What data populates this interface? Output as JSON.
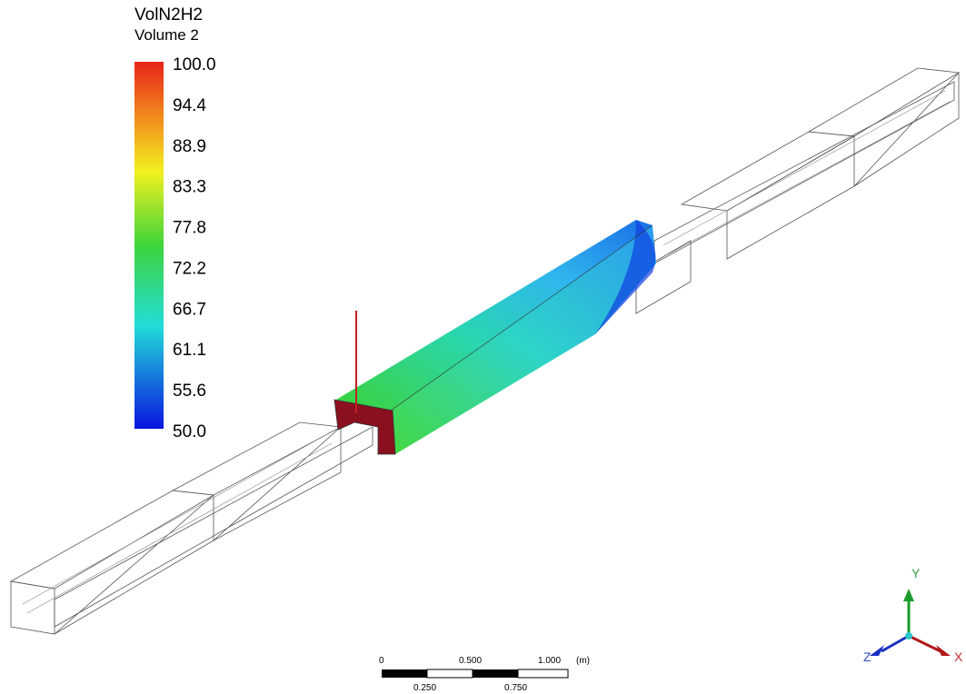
{
  "legend": {
    "title": "VolN2H2",
    "subtitle": "Volume 2",
    "ticks": [
      "100.0",
      "94.4",
      "88.9",
      "83.3",
      "77.8",
      "72.2",
      "66.7",
      "61.1",
      "55.6",
      "50.0"
    ]
  },
  "scale_bar": {
    "top_labels": [
      "0",
      "0.500",
      "1.000"
    ],
    "unit": "(m)",
    "bottom_labels": [
      "0.250",
      "0.750"
    ]
  },
  "axes": {
    "y": "Y",
    "x": "X",
    "z": "Z"
  }
}
